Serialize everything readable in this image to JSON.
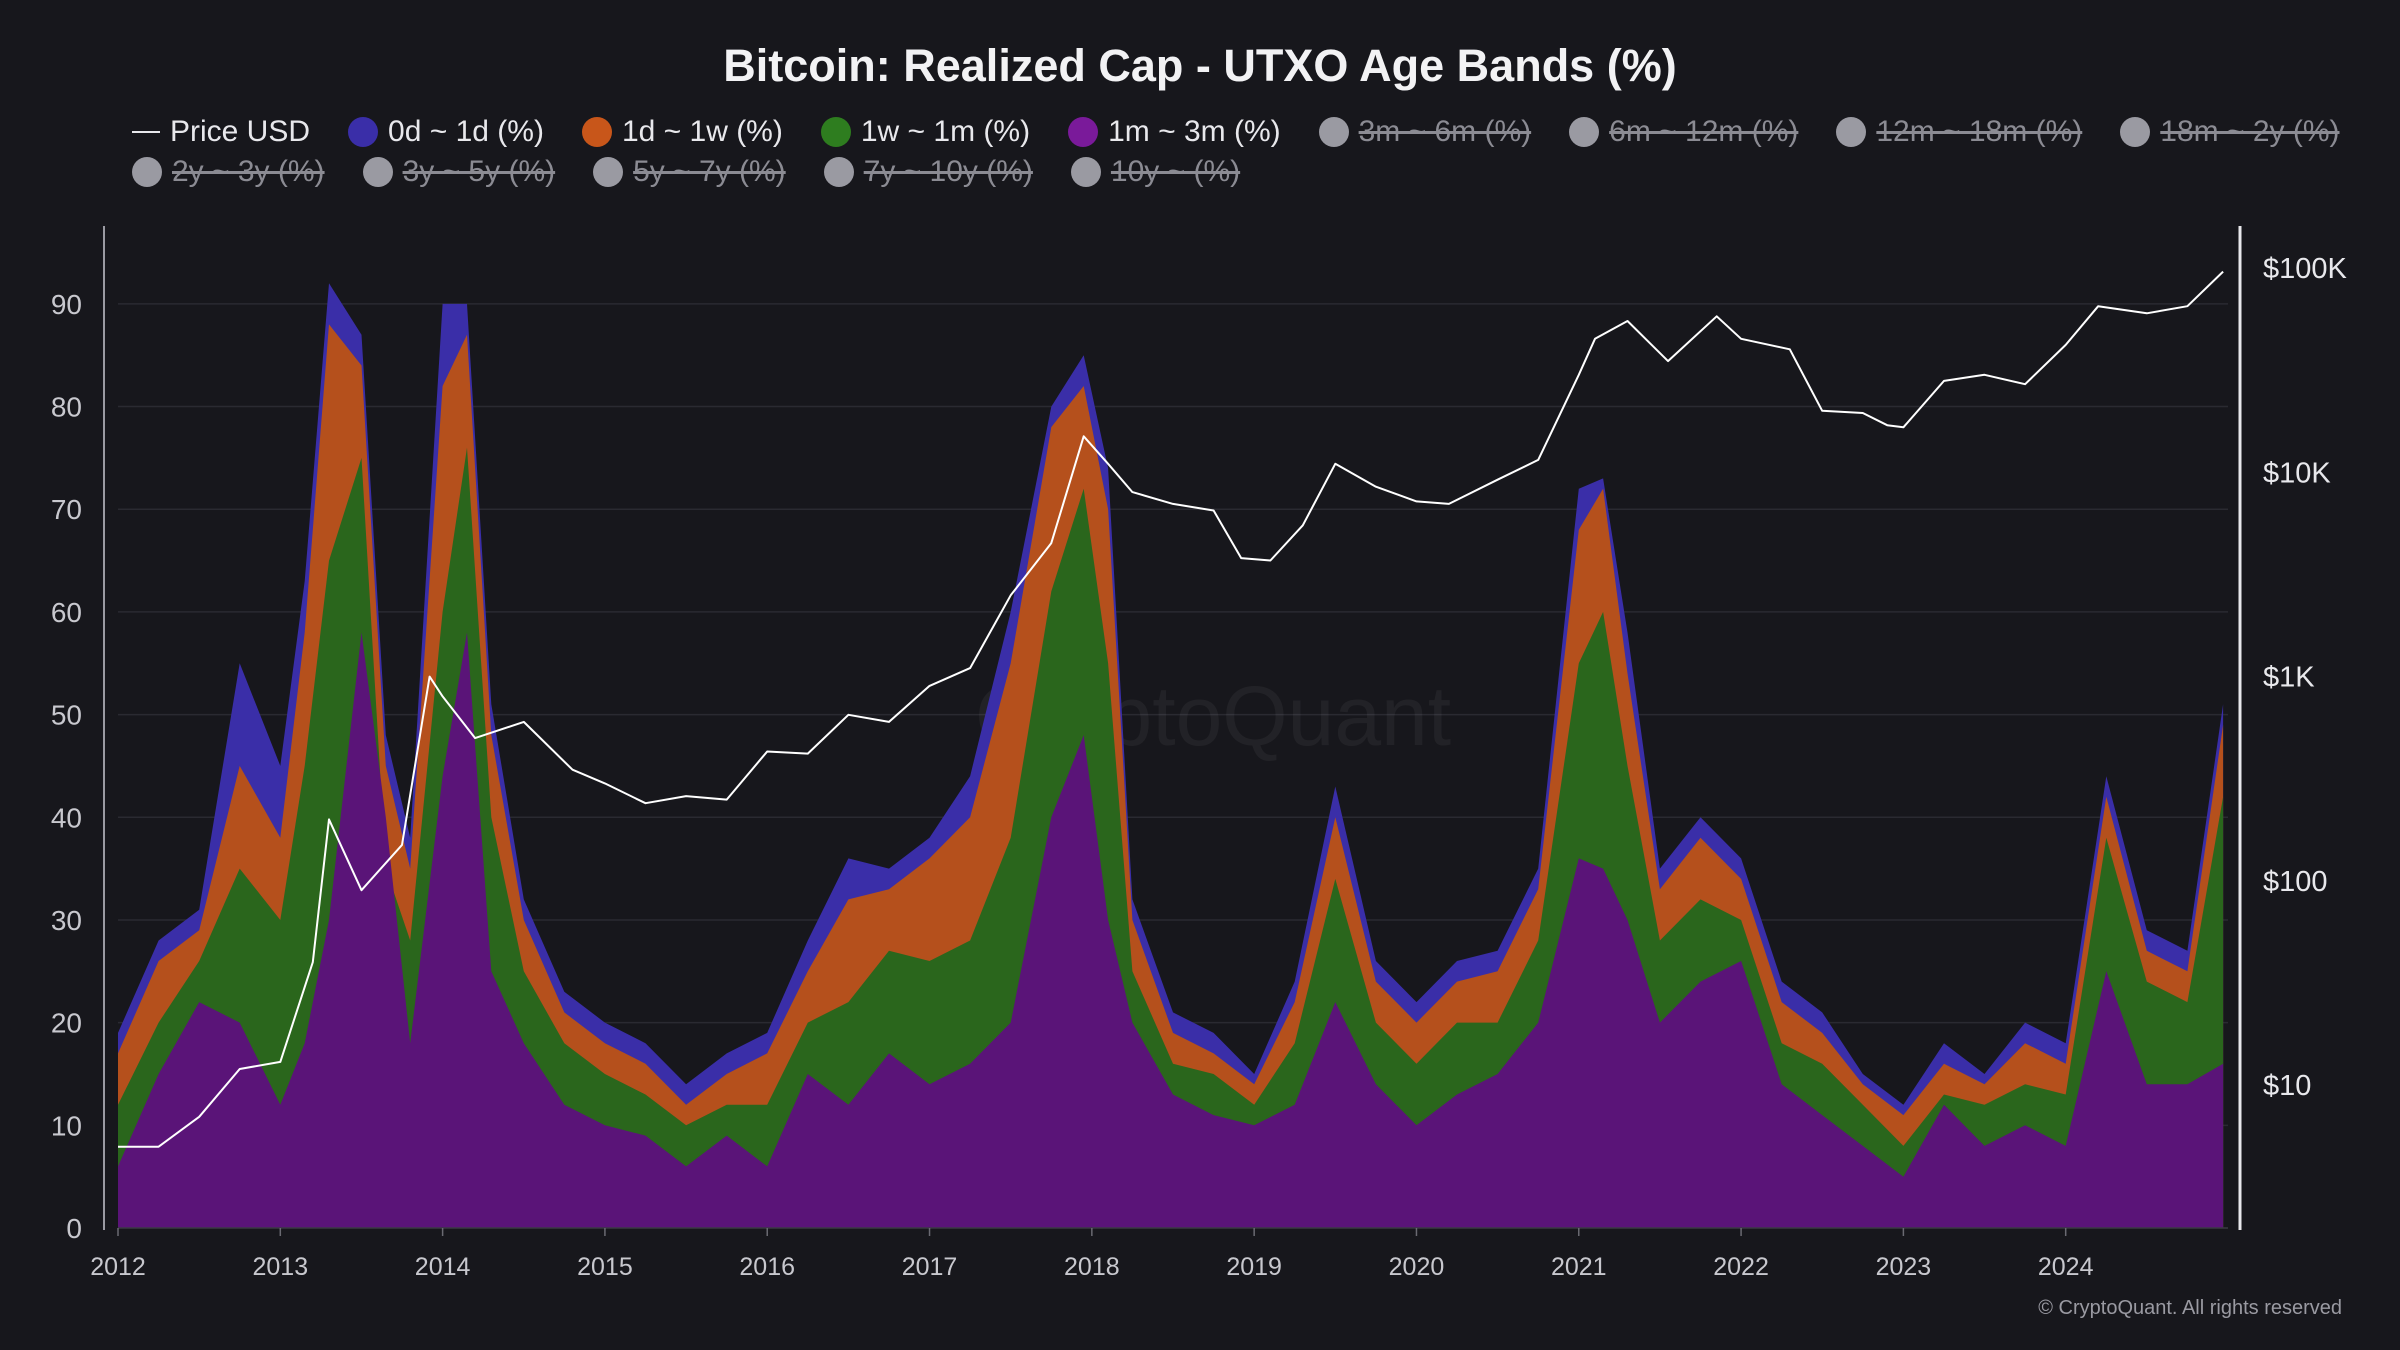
{
  "title": "Bitcoin: Realized Cap - UTXO Age Bands (%)",
  "copyright": "© CryptoQuant. All rights reserved",
  "watermark": "CryptoQuant",
  "legend": [
    {
      "label": "Price USD",
      "kind": "line",
      "active": true,
      "color": "#ffffff"
    },
    {
      "label": "0d ~ 1d (%)",
      "kind": "dot",
      "active": true,
      "color": "#3a2ea8"
    },
    {
      "label": "1d ~ 1w (%)",
      "kind": "dot",
      "active": true,
      "color": "#c8561a"
    },
    {
      "label": "1w ~ 1m (%)",
      "kind": "dot",
      "active": true,
      "color": "#2e7d1f"
    },
    {
      "label": "1m ~ 3m (%)",
      "kind": "dot",
      "active": true,
      "color": "#7a1a9a"
    },
    {
      "label": "3m ~ 6m (%)",
      "kind": "dot",
      "active": false,
      "color": "#9a9aa2"
    },
    {
      "label": "6m ~ 12m (%)",
      "kind": "dot",
      "active": false,
      "color": "#9a9aa2"
    },
    {
      "label": "12m ~ 18m (%)",
      "kind": "dot",
      "active": false,
      "color": "#9a9aa2"
    },
    {
      "label": "18m ~ 2y (%)",
      "kind": "dot",
      "active": false,
      "color": "#9a9aa2"
    },
    {
      "label": "2y ~ 3y (%)",
      "kind": "dot",
      "active": false,
      "color": "#9a9aa2"
    },
    {
      "label": "3y ~ 5y (%)",
      "kind": "dot",
      "active": false,
      "color": "#9a9aa2"
    },
    {
      "label": "5y ~ 7y (%)",
      "kind": "dot",
      "active": false,
      "color": "#9a9aa2"
    },
    {
      "label": "7y ~ 10y (%)",
      "kind": "dot",
      "active": false,
      "color": "#9a9aa2"
    },
    {
      "label": "10y ~ (%)",
      "kind": "dot",
      "active": false,
      "color": "#9a9aa2"
    }
  ],
  "chart_data": {
    "type": "area",
    "stacked": true,
    "title": "Bitcoin: Realized Cap - UTXO Age Bands (%)",
    "x": [
      2012.0,
      2012.25,
      2012.5,
      2012.75,
      2013.0,
      2013.15,
      2013.3,
      2013.5,
      2013.65,
      2013.8,
      2014.0,
      2014.15,
      2014.3,
      2014.5,
      2014.75,
      2015.0,
      2015.25,
      2015.5,
      2015.75,
      2016.0,
      2016.25,
      2016.5,
      2016.75,
      2017.0,
      2017.25,
      2017.5,
      2017.75,
      2017.95,
      2018.1,
      2018.25,
      2018.5,
      2018.75,
      2019.0,
      2019.25,
      2019.5,
      2019.75,
      2020.0,
      2020.25,
      2020.5,
      2020.75,
      2021.0,
      2021.15,
      2021.3,
      2021.5,
      2021.75,
      2022.0,
      2022.25,
      2022.5,
      2022.75,
      2023.0,
      2023.25,
      2023.5,
      2023.75,
      2024.0,
      2024.25,
      2024.5,
      2024.75,
      2024.97
    ],
    "x_ticks": [
      "2012",
      "2013",
      "2014",
      "2015",
      "2016",
      "2017",
      "2018",
      "2019",
      "2020",
      "2021",
      "2022",
      "2023",
      "2024"
    ],
    "y_ticks": [
      "0",
      "10",
      "20",
      "30",
      "40",
      "50",
      "60",
      "70",
      "80",
      "90"
    ],
    "y2_ticks": [
      "$10",
      "$100",
      "$1K",
      "$10K",
      "$100K"
    ],
    "ylim": [
      0,
      97
    ],
    "y2_log": true,
    "y2lim": [
      2,
      150000
    ],
    "series": [
      {
        "name": "1m ~ 3m (%)",
        "color": "#5a1478",
        "values": [
          6,
          15,
          22,
          20,
          12,
          18,
          30,
          58,
          40,
          18,
          44,
          58,
          25,
          18,
          12,
          10,
          9,
          6,
          9,
          6,
          15,
          12,
          17,
          14,
          16,
          20,
          40,
          48,
          30,
          20,
          13,
          11,
          10,
          12,
          22,
          14,
          10,
          13,
          15,
          20,
          36,
          35,
          30,
          20,
          24,
          26,
          14,
          11,
          8,
          5,
          12,
          8,
          10,
          8,
          25,
          14,
          14,
          16
        ]
      },
      {
        "name": "1w ~ 1m (%)",
        "color": "#2a661c",
        "values": [
          12,
          20,
          26,
          35,
          30,
          45,
          65,
          75,
          35,
          28,
          60,
          76,
          40,
          25,
          18,
          15,
          13,
          10,
          12,
          12,
          20,
          22,
          27,
          26,
          28,
          38,
          62,
          72,
          55,
          25,
          16,
          15,
          12,
          18,
          34,
          20,
          16,
          20,
          20,
          28,
          55,
          60,
          45,
          28,
          32,
          30,
          18,
          16,
          12,
          8,
          13,
          12,
          14,
          13,
          38,
          24,
          22,
          42
        ]
      },
      {
        "name": "1d ~ 1w (%)",
        "color": "#b5501c",
        "values": [
          17,
          26,
          29,
          45,
          38,
          58,
          88,
          84,
          45,
          35,
          82,
          87,
          48,
          30,
          21,
          18,
          16,
          12,
          15,
          17,
          25,
          32,
          33,
          36,
          40,
          55,
          78,
          82,
          70,
          30,
          19,
          17,
          14,
          22,
          40,
          24,
          20,
          24,
          25,
          33,
          68,
          72,
          54,
          33,
          38,
          34,
          22,
          19,
          14,
          11,
          16,
          14,
          18,
          16,
          42,
          27,
          25,
          49
        ]
      },
      {
        "name": "0d ~ 1d (%)",
        "color": "#3a2ea8",
        "values": [
          19,
          28,
          31,
          55,
          45,
          63,
          92,
          87,
          48,
          38,
          90,
          90,
          51,
          32,
          23,
          20,
          18,
          14,
          17,
          19,
          28,
          36,
          35,
          38,
          44,
          60,
          80,
          85,
          74,
          32,
          21,
          19,
          15,
          24,
          43,
          26,
          22,
          26,
          27,
          35,
          72,
          73,
          58,
          35,
          40,
          36,
          24,
          21,
          15,
          12,
          18,
          15,
          20,
          18,
          44,
          29,
          27,
          51
        ]
      }
    ],
    "price": {
      "name": "Price USD",
      "color": "#ffffff",
      "x": [
        2012.0,
        2012.25,
        2012.5,
        2012.75,
        2013.0,
        2013.2,
        2013.3,
        2013.5,
        2013.75,
        2013.92,
        2014.0,
        2014.2,
        2014.5,
        2014.8,
        2015.0,
        2015.25,
        2015.5,
        2015.75,
        2016.0,
        2016.25,
        2016.5,
        2016.75,
        2017.0,
        2017.25,
        2017.5,
        2017.75,
        2017.95,
        2018.1,
        2018.25,
        2018.5,
        2018.75,
        2018.92,
        2019.1,
        2019.3,
        2019.5,
        2019.75,
        2020.0,
        2020.2,
        2020.5,
        2020.75,
        2021.0,
        2021.1,
        2021.3,
        2021.55,
        2021.85,
        2022.0,
        2022.3,
        2022.5,
        2022.75,
        2022.9,
        2023.0,
        2023.25,
        2023.5,
        2023.75,
        2024.0,
        2024.2,
        2024.5,
        2024.75,
        2024.97
      ],
      "values": [
        5,
        5,
        7,
        12,
        13,
        40,
        200,
        90,
        150,
        1000,
        800,
        500,
        600,
        350,
        300,
        240,
        260,
        250,
        430,
        420,
        650,
        600,
        900,
        1100,
        2500,
        4500,
        15000,
        11000,
        8000,
        7000,
        6500,
        3800,
        3700,
        5500,
        11000,
        8500,
        7200,
        7000,
        9200,
        11500,
        30000,
        45000,
        55000,
        35000,
        58000,
        45000,
        40000,
        20000,
        19500,
        17000,
        16600,
        28000,
        30000,
        27000,
        42000,
        65000,
        60000,
        65000,
        96000
      ]
    }
  }
}
